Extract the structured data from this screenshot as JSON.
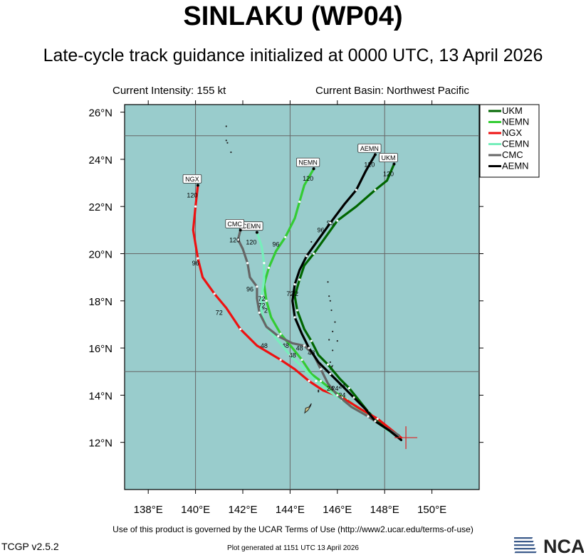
{
  "header": {
    "title": "SINLAKU (WP04)",
    "subtitle": "Late-cycle track guidance initialized at 0000 UTC, 13 April 2026",
    "intensity": "Current Intensity: 155 kt",
    "basin": "Current Basin: Northwest Pacific"
  },
  "footer": {
    "terms": "Use of this product is governed by the UCAR Terms of Use (http://www2.ucar.edu/terms-of-use)",
    "version": "TCGP v2.5.2",
    "plotted": "Plot generated at 1151 UTC   13 April 2026",
    "logo_text": "NCAR"
  },
  "chart_data": {
    "type": "line",
    "x_axis": {
      "min": 137.0,
      "max": 151.8,
      "ticks": [
        138,
        140,
        142,
        144,
        146,
        148,
        150
      ],
      "tick_labels": [
        "138°E",
        "140°E",
        "142°E",
        "144°E",
        "146°E",
        "148°E",
        "150°E"
      ]
    },
    "y_axis": {
      "min": 10.0,
      "max": 26.3,
      "ticks": [
        12,
        14,
        16,
        18,
        20,
        22,
        24,
        26
      ],
      "tick_labels": [
        "12°N",
        "14°N",
        "16°N",
        "18°N",
        "20°N",
        "22°N",
        "24°N",
        "26°N"
      ]
    },
    "grid_lines": {
      "lon": [
        140,
        144,
        148
      ],
      "lat": [
        15,
        20,
        25
      ]
    },
    "background_color": "#99cccc",
    "legend_position": "top-right",
    "storm_position": {
      "lon": 148.9,
      "lat": 12.2
    },
    "series": [
      {
        "name": "UKM",
        "color": "#006600",
        "end_label": "UKM",
        "end_hour": "120",
        "track": [
          [
            148.65,
            12.2
          ],
          [
            148.55,
            12.3
          ],
          [
            148.3,
            12.5
          ],
          [
            147.7,
            12.9
          ],
          [
            147.3,
            13.3
          ],
          [
            146.9,
            13.8
          ],
          [
            146.5,
            14.3
          ],
          [
            146.1,
            14.7
          ],
          [
            145.6,
            15.3
          ],
          [
            145.2,
            15.7
          ],
          [
            144.9,
            16.3
          ],
          [
            144.6,
            16.8
          ],
          [
            144.3,
            17.6
          ],
          [
            144.2,
            18.2
          ],
          [
            144.4,
            18.9
          ],
          [
            144.6,
            19.5
          ],
          [
            145.0,
            20.0
          ],
          [
            145.5,
            20.7
          ],
          [
            146.0,
            21.4
          ],
          [
            146.8,
            22.0
          ],
          [
            147.6,
            22.7
          ],
          [
            148.1,
            23.1
          ],
          [
            148.4,
            23.8
          ]
        ],
        "hour_labels": [
          {
            "t": "96",
            "lon": 145.7,
            "lat": 21.2
          },
          {
            "t": "72",
            "lon": 144.2,
            "lat": 18.2
          },
          {
            "t": "48",
            "lon": 144.9,
            "lat": 15.7
          },
          {
            "t": "24",
            "lon": 146.2,
            "lat": 14.3
          }
        ]
      },
      {
        "name": "NEMN",
        "color": "#33cc33",
        "end_label": "NEMN",
        "end_hour": "120",
        "track": [
          [
            148.6,
            12.2
          ],
          [
            148.2,
            12.5
          ],
          [
            147.6,
            12.9
          ],
          [
            147.1,
            13.3
          ],
          [
            146.4,
            13.8
          ],
          [
            145.8,
            14.2
          ],
          [
            145.3,
            14.6
          ],
          [
            144.9,
            14.9
          ],
          [
            144.5,
            15.5
          ],
          [
            144.1,
            16.0
          ],
          [
            143.6,
            16.6
          ],
          [
            143.2,
            17.3
          ],
          [
            143.0,
            18.0
          ],
          [
            142.9,
            18.7
          ],
          [
            143.1,
            19.4
          ],
          [
            143.4,
            20.1
          ],
          [
            143.8,
            20.7
          ],
          [
            144.2,
            21.5
          ],
          [
            144.4,
            22.2
          ],
          [
            144.6,
            22.9
          ],
          [
            145.0,
            23.6
          ]
        ],
        "hour_labels": [
          {
            "t": "96",
            "lon": 143.4,
            "lat": 20.3
          },
          {
            "t": "72",
            "lon": 142.9,
            "lat": 17.5
          },
          {
            "t": "48",
            "lon": 143.8,
            "lat": 16.0
          }
        ]
      },
      {
        "name": "NGX",
        "color": "#ee1111",
        "end_label": "NGX",
        "end_hour": "120",
        "track": [
          [
            148.7,
            12.2
          ],
          [
            148.2,
            12.6
          ],
          [
            147.7,
            13.0
          ],
          [
            147.0,
            13.4
          ],
          [
            146.2,
            13.9
          ],
          [
            145.4,
            14.2
          ],
          [
            144.8,
            14.6
          ],
          [
            144.2,
            15.1
          ],
          [
            143.6,
            15.5
          ],
          [
            142.6,
            16.1
          ],
          [
            141.9,
            16.8
          ],
          [
            141.3,
            17.7
          ],
          [
            140.8,
            18.3
          ],
          [
            140.3,
            19.0
          ],
          [
            140.1,
            19.8
          ],
          [
            139.9,
            21.0
          ],
          [
            140.0,
            22.0
          ],
          [
            140.1,
            22.9
          ]
        ],
        "hour_labels": [
          {
            "t": "96",
            "lon": 140.0,
            "lat": 19.5
          },
          {
            "t": "72",
            "lon": 141.0,
            "lat": 17.4
          },
          {
            "t": "48",
            "lon": 142.9,
            "lat": 16.0
          },
          {
            "t": "24",
            "lon": 146.2,
            "lat": 13.9
          }
        ]
      },
      {
        "name": "CEMN",
        "color": "#77eebb",
        "end_label": "CEMN",
        "end_hour": "120",
        "track": [
          [
            148.6,
            12.2
          ],
          [
            148.0,
            12.6
          ],
          [
            147.5,
            13.0
          ],
          [
            146.8,
            13.4
          ],
          [
            146.2,
            13.8
          ],
          [
            145.6,
            14.2
          ],
          [
            145.1,
            14.6
          ],
          [
            144.6,
            15.1
          ],
          [
            144.0,
            15.7
          ],
          [
            143.5,
            16.3
          ],
          [
            143.0,
            16.9
          ],
          [
            142.8,
            17.5
          ],
          [
            142.8,
            18.2
          ],
          [
            142.9,
            18.9
          ],
          [
            142.9,
            19.6
          ],
          [
            142.8,
            20.3
          ],
          [
            142.6,
            20.9
          ]
        ],
        "hour_labels": [
          {
            "t": "72",
            "lon": 142.8,
            "lat": 17.7
          },
          {
            "t": "48",
            "lon": 144.1,
            "lat": 15.6
          },
          {
            "t": "24",
            "lon": 145.9,
            "lat": 14.2
          }
        ]
      },
      {
        "name": "CMC",
        "color": "#666666",
        "end_label": "CMC",
        "end_hour": "120",
        "track": [
          [
            148.6,
            12.3
          ],
          [
            147.9,
            12.7
          ],
          [
            147.3,
            13.1
          ],
          [
            146.6,
            13.5
          ],
          [
            146.0,
            14.0
          ],
          [
            145.6,
            14.5
          ],
          [
            145.3,
            15.1
          ],
          [
            145.0,
            15.7
          ],
          [
            144.6,
            16.1
          ],
          [
            144.1,
            16.2
          ],
          [
            143.5,
            16.5
          ],
          [
            143.0,
            16.9
          ],
          [
            142.7,
            17.5
          ],
          [
            142.6,
            18.1
          ],
          [
            142.6,
            18.6
          ],
          [
            142.3,
            19.0
          ],
          [
            142.2,
            19.6
          ],
          [
            142.0,
            20.2
          ],
          [
            141.8,
            20.6
          ],
          [
            141.9,
            21.0
          ]
        ],
        "hour_labels": [
          {
            "t": "96",
            "lon": 142.3,
            "lat": 18.4
          },
          {
            "t": "72",
            "lon": 142.8,
            "lat": 18.0
          },
          {
            "t": "48",
            "lon": 144.4,
            "lat": 15.9
          },
          {
            "t": "24",
            "lon": 145.7,
            "lat": 14.2
          }
        ]
      },
      {
        "name": "AEMN",
        "color": "#000000",
        "end_label": "AEMN",
        "end_hour": "120",
        "track": [
          [
            148.7,
            12.1
          ],
          [
            148.2,
            12.5
          ],
          [
            147.6,
            12.9
          ],
          [
            147.2,
            13.4
          ],
          [
            146.7,
            13.9
          ],
          [
            146.2,
            14.4
          ],
          [
            145.7,
            14.9
          ],
          [
            145.2,
            15.4
          ],
          [
            144.8,
            16.0
          ],
          [
            144.5,
            16.6
          ],
          [
            144.2,
            17.3
          ],
          [
            144.1,
            18.0
          ],
          [
            144.2,
            18.7
          ],
          [
            144.4,
            19.3
          ],
          [
            144.7,
            19.9
          ],
          [
            145.2,
            20.6
          ],
          [
            145.7,
            21.3
          ],
          [
            146.3,
            22.1
          ],
          [
            146.8,
            22.7
          ],
          [
            147.2,
            23.5
          ],
          [
            147.6,
            24.2
          ]
        ],
        "hour_labels": [
          {
            "t": "96",
            "lon": 145.3,
            "lat": 20.9
          },
          {
            "t": "72",
            "lon": 144.0,
            "lat": 18.2
          }
        ]
      }
    ],
    "land": [
      {
        "name": "Guam",
        "poly": [
          [
            144.62,
            13.25
          ],
          [
            144.75,
            13.35
          ],
          [
            144.87,
            13.55
          ],
          [
            144.9,
            13.65
          ],
          [
            144.8,
            13.5
          ],
          [
            144.66,
            13.45
          ]
        ]
      },
      {
        "name": "island",
        "poly": [
          [
            145.7,
            15.1
          ],
          [
            145.76,
            15.16
          ],
          [
            145.8,
            15.25
          ],
          [
            145.72,
            15.2
          ]
        ]
      }
    ],
    "islets": [
      [
        141.3,
        25.4
      ],
      [
        141.3,
        24.8
      ],
      [
        141.35,
        24.7
      ],
      [
        141.5,
        24.3
      ],
      [
        144.9,
        20.5
      ],
      [
        145.6,
        18.8
      ],
      [
        145.65,
        18.2
      ],
      [
        145.7,
        18.0
      ],
      [
        145.75,
        17.6
      ],
      [
        145.9,
        17.1
      ],
      [
        145.8,
        16.7
      ],
      [
        146.0,
        16.3
      ],
      [
        145.65,
        16.35
      ],
      [
        145.8,
        15.9
      ],
      [
        145.7,
        15.4
      ],
      [
        145.2,
        14.2
      ],
      [
        145.2,
        14.15
      ]
    ]
  }
}
